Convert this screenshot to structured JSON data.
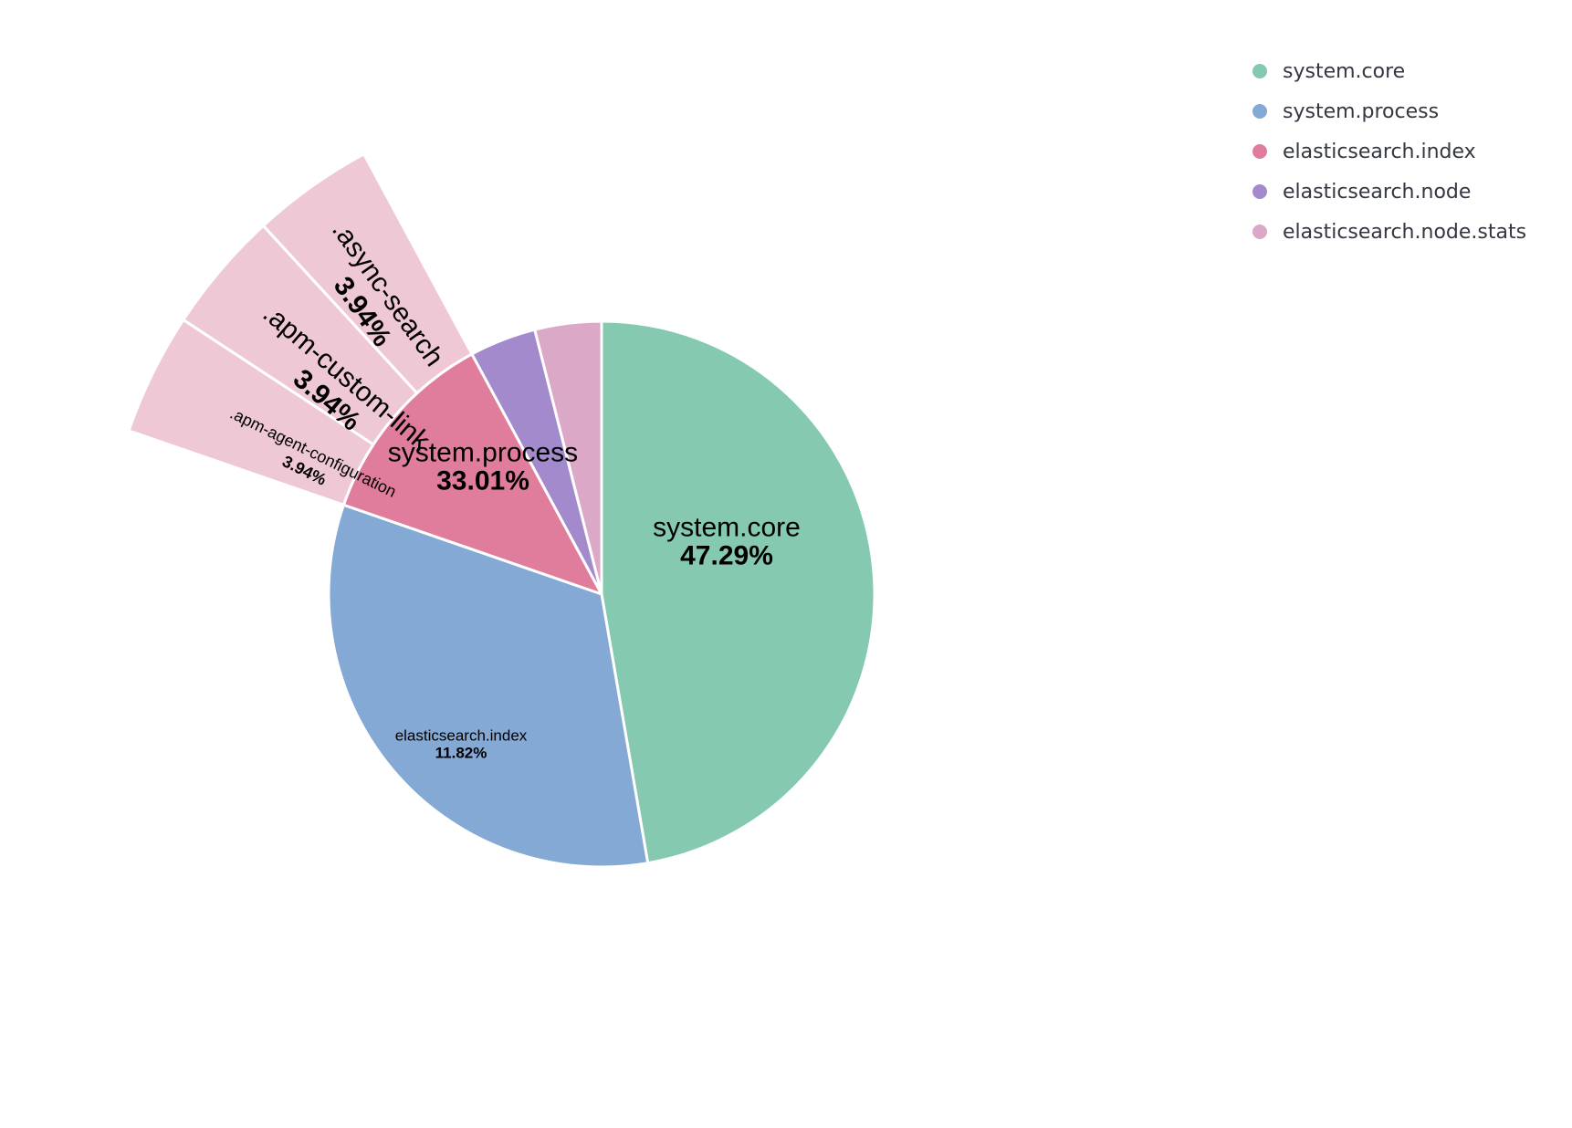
{
  "chart_data": {
    "type": "pie",
    "slices": [
      {
        "name": "system.core",
        "value": 47.29,
        "label": "47.29%",
        "color": "#85C9B1"
      },
      {
        "name": "system.process",
        "value": 33.01,
        "label": "33.01%",
        "color": "#84A9D4"
      },
      {
        "name": "elasticsearch.index",
        "value": 11.82,
        "label": "11.82%",
        "color": "#E07D9C"
      },
      {
        "name": "elasticsearch.node",
        "value": 3.94,
        "label": "",
        "color": "#A38ACC"
      },
      {
        "name": "elasticsearch.node.stats",
        "value": 3.94,
        "label": "",
        "color": "#DBA8C8"
      }
    ],
    "outer_ring": {
      "parent": "elasticsearch.index",
      "color": "#EFC8D6",
      "slices": [
        {
          "name": ".apm-agent-configuration",
          "value": 3.94,
          "label": "3.94%"
        },
        {
          "name": ".apm-custom-link",
          "value": 3.94,
          "label": "3.94%"
        },
        {
          "name": ".async-search",
          "value": 3.94,
          "label": "3.94%"
        }
      ]
    },
    "legend": {
      "position": "top-right",
      "items": [
        {
          "name": "system.core",
          "color": "#85C9B1"
        },
        {
          "name": "system.process",
          "color": "#84A9D4"
        },
        {
          "name": "elasticsearch.index",
          "color": "#E07D9C"
        },
        {
          "name": "elasticsearch.node",
          "color": "#A38ACC"
        },
        {
          "name": "elasticsearch.node.stats",
          "color": "#DBA8C8"
        }
      ]
    }
  }
}
